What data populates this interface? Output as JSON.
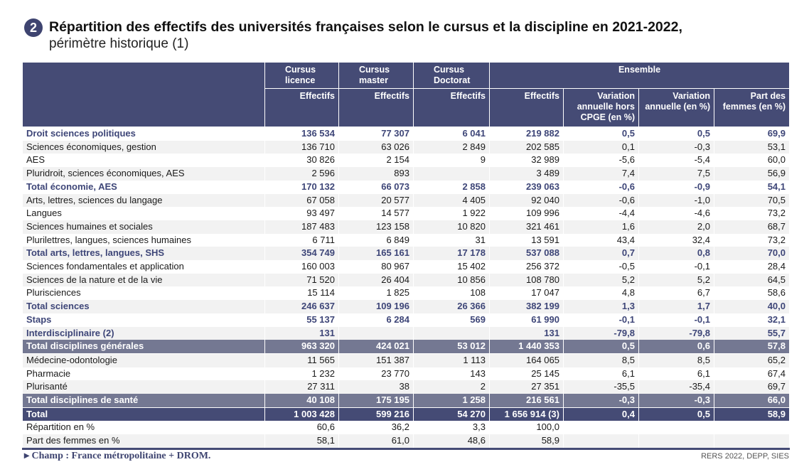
{
  "title": {
    "number": "2",
    "line1": "Répartition des effectifs des universités françaises selon le cursus et la discipline en 2021-2022,",
    "line2": "périmètre historique (1)"
  },
  "header": {
    "groups": [
      "Cursus licence",
      "Cursus master",
      "Cursus Doctorat",
      "Ensemble"
    ],
    "columns": [
      "Effectifs",
      "Effectifs",
      "Effectifs",
      "Effectifs",
      "Variation annuelle hors CPGE (en %)",
      "Variation annuelle (en %)",
      "Part des femmes (en %)"
    ]
  },
  "rows": [
    {
      "style": "b",
      "cells": [
        "Droit sciences politiques",
        "136 534",
        "77 307",
        "6 041",
        "219 882",
        "0,5",
        "0,5",
        "69,9"
      ]
    },
    {
      "style": "",
      "cells": [
        "Sciences économiques, gestion",
        "136 710",
        "63 026",
        "2 849",
        "202 585",
        "0,1",
        "-0,3",
        "53,1"
      ]
    },
    {
      "style": "",
      "cells": [
        "AES",
        "30 826",
        "2 154",
        "9",
        "32 989",
        "-5,6",
        "-5,4",
        "60,0"
      ]
    },
    {
      "style": "",
      "cells": [
        "Pluridroit, sciences économiques, AES",
        "2 596",
        "893",
        "",
        "3 489",
        "7,4",
        "7,5",
        "56,9"
      ]
    },
    {
      "style": "b",
      "cells": [
        "Total économie, AES",
        "170 132",
        "66 073",
        "2 858",
        "239 063",
        "-0,6",
        "-0,9",
        "54,1"
      ]
    },
    {
      "style": "",
      "cells": [
        "Arts, lettres, sciences du langage",
        "67 058",
        "20 577",
        "4 405",
        "92 040",
        "-0,6",
        "-1,0",
        "70,5"
      ]
    },
    {
      "style": "",
      "cells": [
        "Langues",
        "93 497",
        "14 577",
        "1 922",
        "109 996",
        "-4,4",
        "-4,6",
        "73,2"
      ]
    },
    {
      "style": "",
      "cells": [
        "Sciences humaines et sociales",
        "187 483",
        "123 158",
        "10 820",
        "321 461",
        "1,6",
        "2,0",
        "68,7"
      ]
    },
    {
      "style": "",
      "cells": [
        "Plurilettres, langues, sciences humaines",
        "6 711",
        "6 849",
        "31",
        "13 591",
        "43,4",
        "32,4",
        "73,2"
      ]
    },
    {
      "style": "b",
      "cells": [
        "Total arts, lettres, langues, SHS",
        "354 749",
        "165 161",
        "17 178",
        "537 088",
        "0,7",
        "0,8",
        "70,0"
      ]
    },
    {
      "style": "",
      "cells": [
        "Sciences fondamentales et application",
        "160 003",
        "80 967",
        "15 402",
        "256 372",
        "-0,5",
        "-0,1",
        "28,4"
      ]
    },
    {
      "style": "",
      "cells": [
        "Sciences de la nature et de la vie",
        "71 520",
        "26 404",
        "10 856",
        "108 780",
        "5,2",
        "5,2",
        "64,5"
      ]
    },
    {
      "style": "",
      "cells": [
        "Plurisciences",
        "15 114",
        "1 825",
        "108",
        "17 047",
        "4,8",
        "6,7",
        "58,6"
      ]
    },
    {
      "style": "b",
      "cells": [
        "Total sciences",
        "246 637",
        "109 196",
        "26 366",
        "382 199",
        "1,3",
        "1,7",
        "40,0"
      ]
    },
    {
      "style": "b",
      "cells": [
        "Staps",
        "55 137",
        "6 284",
        "569",
        "61 990",
        "-0,1",
        "-0,1",
        "32,1"
      ]
    },
    {
      "style": "b",
      "cells": [
        "Interdisciplinaire (2)",
        "131",
        "",
        "",
        "131",
        "-79,8",
        "-79,8",
        "55,7"
      ]
    },
    {
      "style": "g",
      "cells": [
        "Total disciplines générales",
        "963 320",
        "424 021",
        "53 012",
        "1 440 353",
        "0,5",
        "0,6",
        "57,8"
      ]
    },
    {
      "style": "",
      "cells": [
        "Médecine-odontologie",
        "11 565",
        "151 387",
        "1 113",
        "164 065",
        "8,5",
        "8,5",
        "65,2"
      ]
    },
    {
      "style": "",
      "cells": [
        "Pharmacie",
        "1 232",
        "23 770",
        "143",
        "25 145",
        "6,1",
        "6,1",
        "67,4"
      ]
    },
    {
      "style": "",
      "cells": [
        "Plurisanté",
        "27 311",
        "38",
        "2",
        "27 351",
        "-35,5",
        "-35,4",
        "69,7"
      ]
    },
    {
      "style": "g",
      "cells": [
        "Total disciplines de santé",
        "40 108",
        "175 195",
        "1 258",
        "216 561",
        "-0,3",
        "-0,3",
        "66,0"
      ]
    },
    {
      "style": "d",
      "cells": [
        "Total",
        "1 003 428",
        "599 216",
        "54 270",
        "1 656 914 (3)",
        "0,4",
        "0,5",
        "58,9"
      ]
    },
    {
      "style": "",
      "cells": [
        "Répartition en %",
        "60,6",
        "36,2",
        "3,3",
        "100,0",
        "",
        "",
        ""
      ]
    },
    {
      "style": "",
      "cells": [
        "Part des femmes en %",
        "58,1",
        "61,0",
        "48,6",
        "58,9",
        "",
        "",
        ""
      ]
    }
  ],
  "footer": {
    "note": "▸  Champ : France métropolitaine + DROM.",
    "source": "RERS 2022, DEPP, SIES"
  }
}
